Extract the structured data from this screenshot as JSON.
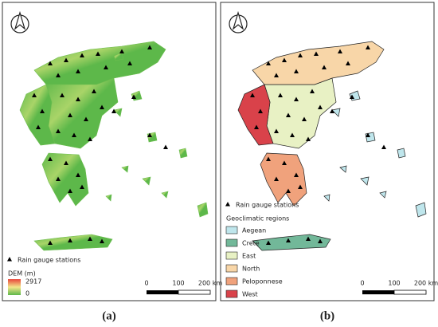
{
  "panel_a": {
    "caption": "(a)",
    "legend": {
      "stations": "Rain gauge stations",
      "dem_title": "DEM (m)",
      "dem_max": "2917",
      "dem_min": "0",
      "dem_colors": [
        "#e8463a",
        "#f2e68a",
        "#5db84a"
      ]
    },
    "scale": [
      "0",
      "100",
      "200 km"
    ],
    "land_color": "#6cbd4f"
  },
  "panel_b": {
    "caption": "(b)",
    "legend": {
      "stations": "Rain gauge stations",
      "regions_title": "Geoclimatic regions",
      "items": [
        {
          "label": "Aegean",
          "color": "#bfe6ec"
        },
        {
          "label": "Crete",
          "color": "#72b899"
        },
        {
          "label": "East",
          "color": "#e8f1c4"
        },
        {
          "label": "North",
          "color": "#f8d6a8"
        },
        {
          "label": "Peloponnese",
          "color": "#f0a27c"
        },
        {
          "label": "West",
          "color": "#d9424a"
        }
      ]
    },
    "scale": [
      "0",
      "100",
      "200 km"
    ]
  }
}
